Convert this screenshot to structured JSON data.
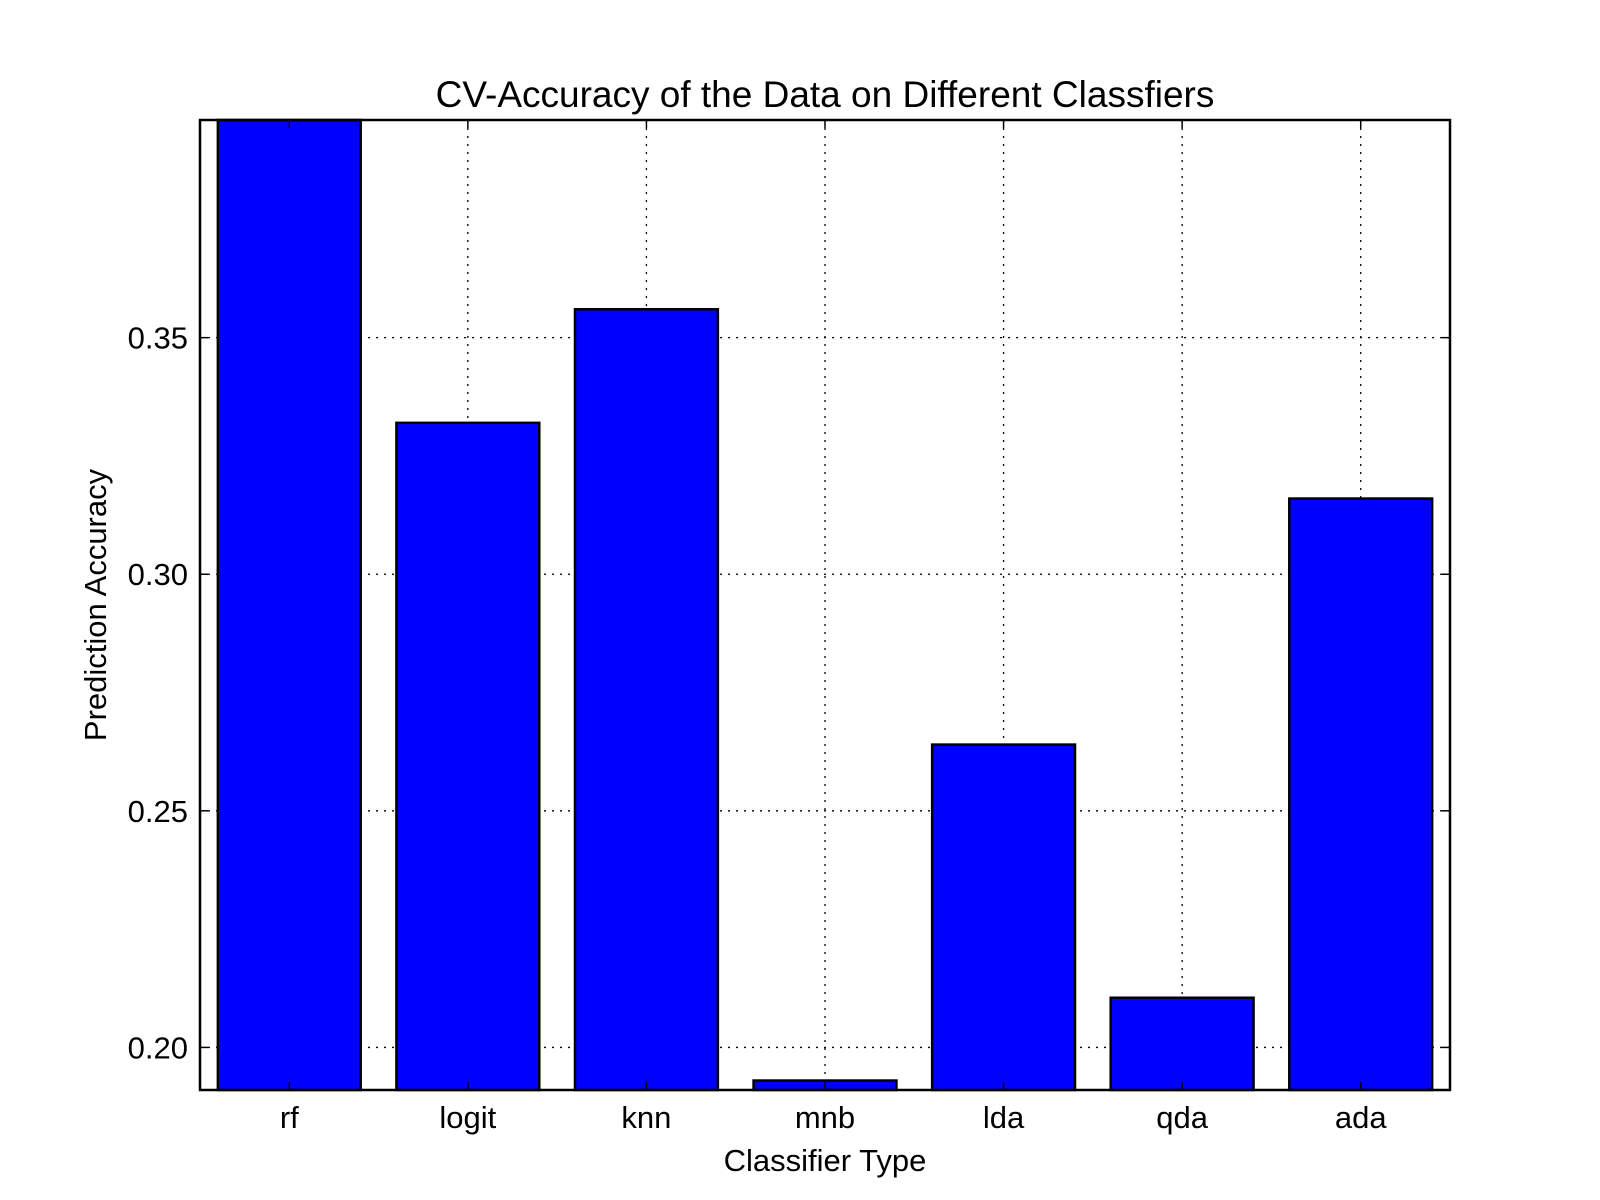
{
  "chart_data": {
    "type": "bar",
    "title": "CV-Accuracy of the Data on Different Classfiers",
    "xlabel": "Classifier Type",
    "ylabel": "Prediction Accuracy",
    "categories": [
      "rf",
      "logit",
      "knn",
      "mnb",
      "lda",
      "qda",
      "ada"
    ],
    "values": [
      0.396,
      0.332,
      0.356,
      0.193,
      0.264,
      0.2105,
      0.316
    ],
    "ylim": [
      0.191,
      0.396
    ],
    "yticks": [
      0.2,
      0.25,
      0.3,
      0.35
    ],
    "ytick_labels": [
      "0.20",
      "0.25",
      "0.30",
      "0.35"
    ],
    "grid": true,
    "grid_style": "dotted",
    "bar_color": "#0000ff",
    "edge_color": "#000000"
  }
}
